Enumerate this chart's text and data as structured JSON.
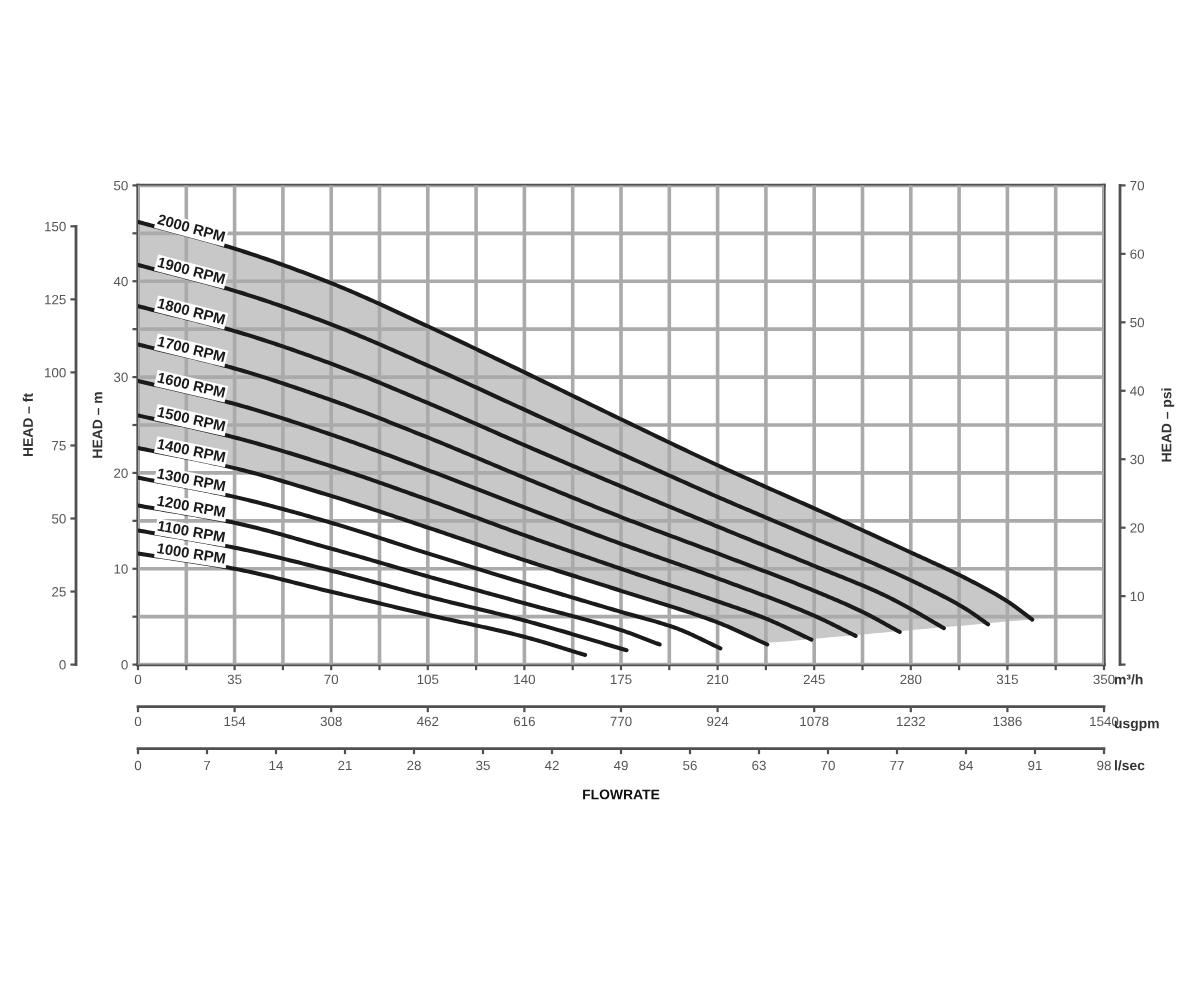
{
  "chart_data": {
    "type": "line",
    "xlabel": "m³/h",
    "x2label": "usgpm",
    "ylabel": "HEAD – m",
    "y2label": "HEAD – psi",
    "y3label": "HEAD – ft",
    "annotations": [
      "0",
      "7",
      "14",
      "21",
      "28",
      "35",
      "42",
      "49",
      "56",
      "63",
      "70",
      "77",
      "84",
      "91",
      "98",
      "l/sec",
      "FLOWRATE"
    ],
    "xlim": [
      0,
      350
    ],
    "xticks": [
      0,
      {
        "value": 17.5,
        "label": null
      },
      35,
      {
        "value": 52.5,
        "label": null
      },
      70,
      {
        "value": 87.5,
        "label": null
      },
      105,
      {
        "value": 122.5,
        "label": null
      },
      140,
      {
        "value": 157.5,
        "label": null
      },
      175,
      {
        "value": 192.5,
        "label": null
      },
      210,
      {
        "value": 227.5,
        "label": null
      },
      245,
      {
        "value": 262.5,
        "label": null
      },
      280,
      {
        "value": 297.5,
        "label": null
      },
      315,
      {
        "value": 332.5,
        "label": null
      },
      350
    ],
    "x2lim": [
      0,
      1540
    ],
    "x2ticks": [
      0,
      154,
      308,
      462,
      616,
      770,
      924,
      1078,
      1232,
      1386,
      1540
    ],
    "ylim": [
      0,
      50
    ],
    "yticks": [
      0,
      {
        "value": 5,
        "label": null
      },
      10,
      {
        "value": 15,
        "label": null
      },
      20,
      {
        "value": 25,
        "label": null
      },
      30,
      {
        "value": 35,
        "label": null
      },
      40,
      {
        "value": 45,
        "label": null
      },
      50
    ],
    "y2lim": [
      0,
      70
    ],
    "y2ticks": [
      {
        "value": 0,
        "label": null
      },
      10,
      20,
      30,
      40,
      50,
      60,
      70
    ],
    "y3lim": [
      0,
      164
    ],
    "y3ticks": [
      0,
      25,
      50,
      75,
      100,
      125,
      150
    ],
    "grid": true,
    "series": [
      {
        "name": "2000 RPM",
        "color": "#1a1a1a",
        "x": [
          0,
          35,
          70,
          105,
          140,
          175,
          210,
          227,
          245,
          280,
          300,
          315,
          324
        ],
        "values": [
          46.2,
          43.4,
          39.8,
          35.3,
          30.5,
          25.6,
          20.8,
          18.6,
          16.3,
          11.7,
          9.0,
          6.6,
          4.7
        ],
        "upper": [
          46.2,
          43.4,
          39.8,
          35.3,
          30.5,
          25.6,
          20.8,
          18.6,
          16.3,
          11.7,
          9.0,
          6.6,
          4.7
        ],
        "lower": [
          22.6,
          20.5,
          17.6,
          14.3,
          10.9,
          7.7,
          4.4,
          2.3,
          2.7,
          3.6,
          4.1,
          4.5,
          4.7
        ]
      },
      {
        "name": "1900 RPM",
        "color": "#1a1a1a",
        "x": [
          0,
          35,
          70,
          105,
          140,
          175,
          210,
          245,
          280,
          300,
          308
        ],
        "values": [
          41.7,
          39.0,
          35.5,
          31.2,
          26.6,
          22.0,
          17.5,
          13.2,
          8.8,
          5.8,
          4.2
        ]
      },
      {
        "name": "1800 RPM",
        "color": "#1a1a1a",
        "x": [
          0,
          35,
          70,
          105,
          140,
          175,
          210,
          245,
          270,
          280,
          292
        ],
        "values": [
          37.4,
          34.8,
          31.4,
          27.3,
          22.9,
          18.6,
          14.4,
          10.3,
          7.3,
          5.8,
          3.8
        ]
      },
      {
        "name": "1700 RPM",
        "color": "#1a1a1a",
        "x": [
          0,
          35,
          70,
          105,
          140,
          175,
          210,
          245,
          262.5,
          276
        ],
        "values": [
          33.4,
          30.9,
          27.6,
          23.7,
          19.5,
          15.4,
          11.6,
          7.7,
          5.5,
          3.4
        ]
      },
      {
        "name": "1600 RPM",
        "color": "#1a1a1a",
        "x": [
          0,
          35,
          70,
          105,
          140,
          175,
          210,
          245,
          260
        ],
        "values": [
          29.6,
          27.2,
          24.0,
          20.3,
          16.4,
          12.6,
          9.0,
          5.1,
          3.0
        ]
      },
      {
        "name": "1500 RPM",
        "color": "#1a1a1a",
        "x": [
          0,
          35,
          70,
          105,
          140,
          175,
          210,
          227.5,
          244
        ],
        "values": [
          26.0,
          23.7,
          20.7,
          17.2,
          13.5,
          10.0,
          6.6,
          4.8,
          2.6
        ]
      },
      {
        "name": "1400 RPM",
        "color": "#1a1a1a",
        "x": [
          0,
          35,
          70,
          105,
          140,
          175,
          210,
          228
        ],
        "values": [
          22.6,
          20.5,
          17.6,
          14.3,
          10.9,
          7.7,
          4.4,
          2.1
        ]
      },
      {
        "name": "1300 RPM",
        "color": "#1a1a1a",
        "x": [
          0,
          35,
          70,
          105,
          140,
          175,
          195,
          211
        ],
        "values": [
          19.5,
          17.5,
          14.8,
          11.6,
          8.5,
          5.5,
          3.8,
          1.7
        ]
      },
      {
        "name": "1200 RPM",
        "color": "#1a1a1a",
        "x": [
          0,
          35,
          70,
          105,
          140,
          175,
          189
        ],
        "values": [
          16.6,
          14.8,
          12.1,
          9.2,
          6.4,
          3.6,
          2.1
        ]
      },
      {
        "name": "1100 RPM",
        "color": "#1a1a1a",
        "x": [
          0,
          35,
          70,
          105,
          140,
          177
        ],
        "values": [
          14.0,
          12.2,
          9.8,
          7.1,
          4.6,
          1.5
        ]
      },
      {
        "name": "1000 RPM",
        "color": "#1a1a1a",
        "x": [
          0,
          35,
          70,
          105,
          140,
          162
        ],
        "values": [
          11.6,
          10.0,
          7.6,
          5.2,
          2.9,
          1.0
        ]
      }
    ]
  }
}
